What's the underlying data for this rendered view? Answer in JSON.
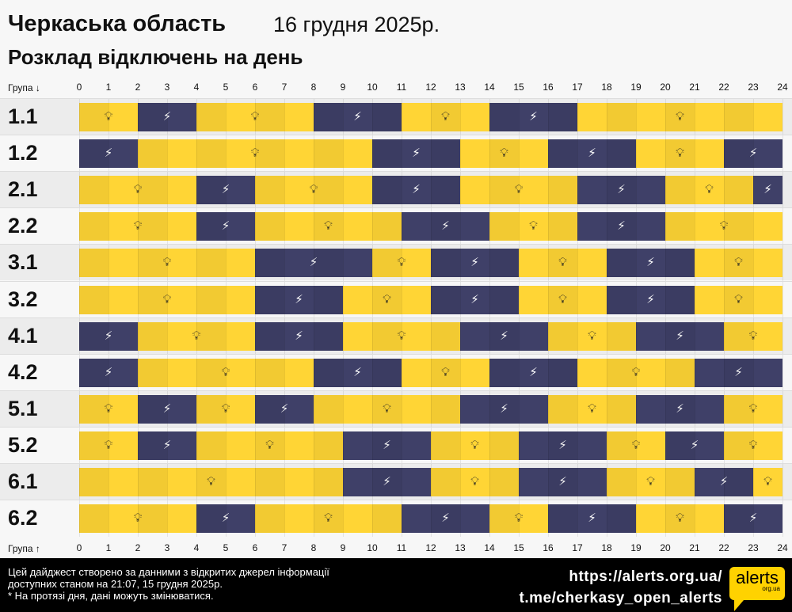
{
  "header": {
    "title": "Черкаська область",
    "date": "16 грудня 2025р.",
    "subtitle": "Розклад відключень на день"
  },
  "axis": {
    "top_label": "Група ↓",
    "bottom_label": "Група ↑",
    "ticks": [
      "0",
      "1",
      "2",
      "3",
      "4",
      "5",
      "6",
      "7",
      "8",
      "9",
      "10",
      "11",
      "12",
      "13",
      "14",
      "15",
      "16",
      "17",
      "18",
      "19",
      "20",
      "21",
      "22",
      "23",
      "24"
    ]
  },
  "colors": {
    "power_on": "#ffd535",
    "power_off": "#3f4068"
  },
  "icons": {
    "power_on": "lightbulb-icon",
    "power_off": "power-off-bolt-icon"
  },
  "groups": [
    {
      "label": "1.1",
      "segments": [
        [
          0,
          2,
          "on"
        ],
        [
          2,
          4,
          "off"
        ],
        [
          4,
          8,
          "on"
        ],
        [
          8,
          11,
          "off"
        ],
        [
          11,
          14,
          "on"
        ],
        [
          14,
          17,
          "off"
        ],
        [
          17,
          24,
          "on"
        ]
      ]
    },
    {
      "label": "1.2",
      "segments": [
        [
          0,
          2,
          "off"
        ],
        [
          2,
          10,
          "on"
        ],
        [
          10,
          13,
          "off"
        ],
        [
          13,
          16,
          "on"
        ],
        [
          16,
          19,
          "off"
        ],
        [
          19,
          22,
          "on"
        ],
        [
          22,
          24,
          "off"
        ]
      ]
    },
    {
      "label": "2.1",
      "segments": [
        [
          0,
          4,
          "on"
        ],
        [
          4,
          6,
          "off"
        ],
        [
          6,
          10,
          "on"
        ],
        [
          10,
          13,
          "off"
        ],
        [
          13,
          17,
          "on"
        ],
        [
          17,
          20,
          "off"
        ],
        [
          20,
          23,
          "on"
        ],
        [
          23,
          24,
          "off"
        ]
      ]
    },
    {
      "label": "2.2",
      "segments": [
        [
          0,
          4,
          "on"
        ],
        [
          4,
          6,
          "off"
        ],
        [
          6,
          11,
          "on"
        ],
        [
          11,
          14,
          "off"
        ],
        [
          14,
          17,
          "on"
        ],
        [
          17,
          20,
          "off"
        ],
        [
          20,
          24,
          "on"
        ]
      ]
    },
    {
      "label": "3.1",
      "segments": [
        [
          0,
          6,
          "on"
        ],
        [
          6,
          10,
          "off"
        ],
        [
          10,
          12,
          "on"
        ],
        [
          12,
          15,
          "off"
        ],
        [
          15,
          18,
          "on"
        ],
        [
          18,
          21,
          "off"
        ],
        [
          21,
          24,
          "on"
        ]
      ]
    },
    {
      "label": "3.2",
      "segments": [
        [
          0,
          6,
          "on"
        ],
        [
          6,
          9,
          "off"
        ],
        [
          9,
          12,
          "on"
        ],
        [
          12,
          15,
          "off"
        ],
        [
          15,
          18,
          "on"
        ],
        [
          18,
          21,
          "off"
        ],
        [
          21,
          24,
          "on"
        ]
      ]
    },
    {
      "label": "4.1",
      "segments": [
        [
          0,
          2,
          "off"
        ],
        [
          2,
          6,
          "on"
        ],
        [
          6,
          9,
          "off"
        ],
        [
          9,
          13,
          "on"
        ],
        [
          13,
          16,
          "off"
        ],
        [
          16,
          19,
          "on"
        ],
        [
          19,
          22,
          "off"
        ],
        [
          22,
          24,
          "on"
        ]
      ]
    },
    {
      "label": "4.2",
      "segments": [
        [
          0,
          2,
          "off"
        ],
        [
          2,
          8,
          "on"
        ],
        [
          8,
          11,
          "off"
        ],
        [
          11,
          14,
          "on"
        ],
        [
          14,
          17,
          "off"
        ],
        [
          17,
          21,
          "on"
        ],
        [
          21,
          24,
          "off"
        ]
      ]
    },
    {
      "label": "5.1",
      "segments": [
        [
          0,
          2,
          "on"
        ],
        [
          2,
          4,
          "off"
        ],
        [
          4,
          6,
          "on"
        ],
        [
          6,
          8,
          "off"
        ],
        [
          8,
          13,
          "on"
        ],
        [
          13,
          16,
          "off"
        ],
        [
          16,
          19,
          "on"
        ],
        [
          19,
          22,
          "off"
        ],
        [
          22,
          24,
          "on"
        ]
      ]
    },
    {
      "label": "5.2",
      "segments": [
        [
          0,
          2,
          "on"
        ],
        [
          2,
          4,
          "off"
        ],
        [
          4,
          9,
          "on"
        ],
        [
          9,
          12,
          "off"
        ],
        [
          12,
          15,
          "on"
        ],
        [
          15,
          18,
          "off"
        ],
        [
          18,
          20,
          "on"
        ],
        [
          20,
          22,
          "off"
        ],
        [
          22,
          24,
          "on"
        ]
      ]
    },
    {
      "label": "6.1",
      "segments": [
        [
          0,
          9,
          "on"
        ],
        [
          9,
          12,
          "off"
        ],
        [
          12,
          15,
          "on"
        ],
        [
          15,
          18,
          "off"
        ],
        [
          18,
          21,
          "on"
        ],
        [
          21,
          23,
          "off"
        ],
        [
          23,
          24,
          "on"
        ]
      ]
    },
    {
      "label": "6.2",
      "segments": [
        [
          0,
          4,
          "on"
        ],
        [
          4,
          6,
          "off"
        ],
        [
          6,
          11,
          "on"
        ],
        [
          11,
          14,
          "off"
        ],
        [
          14,
          16,
          "on"
        ],
        [
          16,
          19,
          "off"
        ],
        [
          19,
          22,
          "on"
        ],
        [
          22,
          24,
          "off"
        ]
      ]
    }
  ],
  "footer": {
    "note_line1": "Цей дайджест створено за данними з відкритих джерел інформації",
    "note_line2": "доступних станом на 21:07, 15 грудня 2025р.",
    "note_line3": "* На протязі дня, дані можуть змінюватися.",
    "link1": "https://alerts.org.ua/",
    "link2": "t.me/cherkasy_open_alerts",
    "logo_text": "alerts",
    "logo_sub": "org.ua"
  }
}
